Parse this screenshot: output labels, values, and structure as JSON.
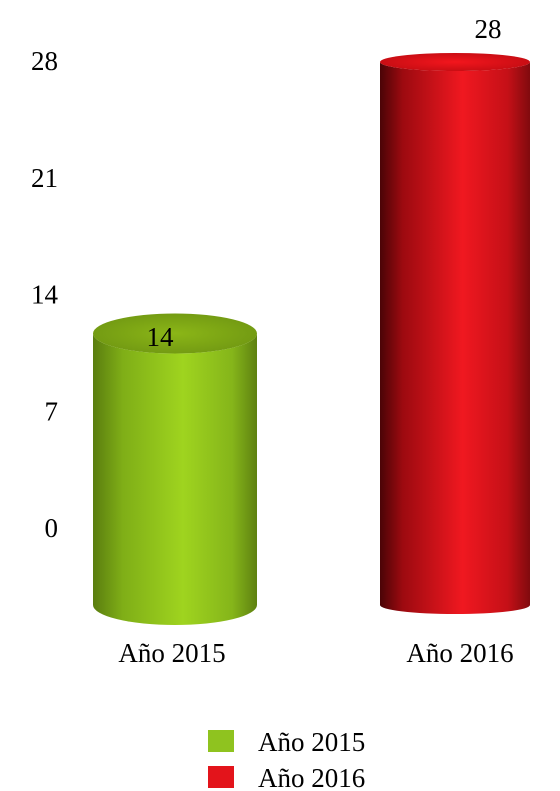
{
  "chart_data": {
    "type": "bar",
    "categories": [
      "Año 2015",
      "Año 2016"
    ],
    "values": [
      14,
      28
    ],
    "data_labels": [
      "14",
      "28"
    ],
    "y_ticks": [
      0,
      7,
      14,
      21,
      28
    ],
    "y_tick_labels": [
      "0",
      "7",
      "14",
      "21",
      "28"
    ],
    "ylim": [
      0,
      28
    ],
    "grid": false,
    "bar_shape": "cylinder",
    "legend": {
      "position": "bottom",
      "entries": [
        "Año 2015",
        "Año 2016"
      ]
    },
    "colors": [
      "#8fc31f",
      "#e3141b"
    ],
    "title": "",
    "xlabel": "",
    "ylabel": ""
  }
}
